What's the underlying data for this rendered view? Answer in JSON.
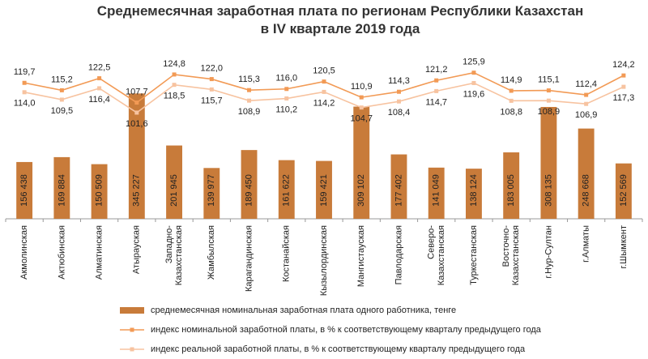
{
  "chart_data": {
    "type": "bar",
    "title": [
      "Среднемесячная заработная плата по регионам Республики Казахстан",
      "в IV квартале 2019 года"
    ],
    "categories": [
      "Акмолинская",
      "Актюбинская",
      "Алматинская",
      "Атырауская",
      "Западно-\nКазахстанская",
      "Жамбылская",
      "Карагандинская",
      "Костанайская",
      "Кызылординская",
      "Мангистауская",
      "Павлодарская",
      "Северо-\nКазахстанская",
      "Туркестанская",
      "Восточно-\nКазахстанская",
      "г.Нур-Султан",
      "г.Алматы",
      "г.Шымкент"
    ],
    "ylim": [
      0,
      480000
    ],
    "y2lim": [
      37,
      143
    ],
    "series": [
      {
        "name": "среднемесячная номинальная заработная плата одного работника, тенге",
        "type": "bar",
        "color": "#c87b3a",
        "values": [
          156438,
          169884,
          150509,
          345227,
          201945,
          139977,
          189450,
          161622,
          159421,
          309102,
          177402,
          141049,
          138124,
          183005,
          308135,
          248668,
          152569
        ],
        "value_labels": [
          "156 438",
          "169 884",
          "150 509",
          "345 227",
          "201 945",
          "139 977",
          "189 450",
          "161 622",
          "159 421",
          "309 102",
          "177 402",
          "141 049",
          "138 124",
          "183 005",
          "308 135",
          "248 668",
          "152 569"
        ]
      },
      {
        "name": "индекс номинальной заработной платы, в % к соответствующему кварталу предыдущего года",
        "type": "line",
        "axis": "y2",
        "color": "#f29a55",
        "values": [
          119.7,
          115.2,
          122.5,
          107.7,
          124.8,
          122.0,
          115.3,
          116.0,
          120.5,
          110.9,
          114.3,
          121.2,
          125.9,
          114.9,
          115.1,
          112.4,
          124.2
        ],
        "value_labels": [
          "119,7",
          "115,2",
          "122,5",
          "107,7",
          "124,8",
          "122,0",
          "115,3",
          "116,0",
          "120,5",
          "110,9",
          "114,3",
          "121,2",
          "125,9",
          "114,9",
          "115,1",
          "112,4",
          "124,2"
        ]
      },
      {
        "name": "индекс реальной заработной платы, в % к соответствующему кварталу предыдущего года",
        "type": "line",
        "axis": "y2",
        "color": "#f7c3a0",
        "values": [
          114.0,
          109.5,
          116.4,
          101.6,
          118.5,
          115.7,
          108.9,
          110.2,
          114.2,
          104.7,
          108.4,
          114.7,
          119.6,
          108.8,
          108.9,
          106.9,
          117.3
        ],
        "value_labels": [
          "114,0",
          "109,5",
          "116,4",
          "101,6",
          "118,5",
          "115,7",
          "108,9",
          "110,2",
          "114,2",
          "104,7",
          "108,4",
          "114,7",
          "119,6",
          "108,8",
          "108,9",
          "106,9",
          "117,3"
        ]
      }
    ]
  }
}
